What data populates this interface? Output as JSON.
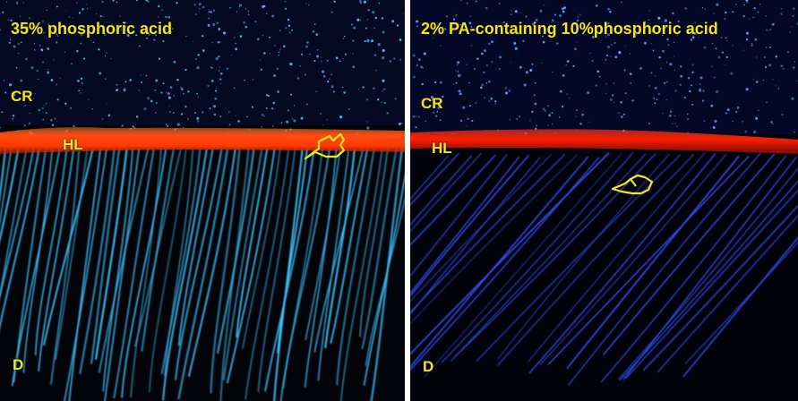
{
  "panels": [
    {
      "title": "35% phosphoric acid",
      "labels": {
        "cr": "CR",
        "hl": "HL",
        "d": "D"
      },
      "colors": {
        "stars": "#4fc3ff",
        "layer": "#ff3a00",
        "tubules": "#3fc8ff",
        "pointer": "#f5e51b"
      },
      "pointer_icon": "hand-pointer-icon"
    },
    {
      "title": "2% PA-containing 10%phosphoric acid",
      "labels": {
        "cr": "CR",
        "hl": "HL",
        "d": "D"
      },
      "colors": {
        "stars": "#4fa9ff",
        "layer": "#ff1e00",
        "tubules": "#2f4dff",
        "pointer": "#f5e51b"
      },
      "pointer_icon": "hand-pointer-icon"
    }
  ]
}
